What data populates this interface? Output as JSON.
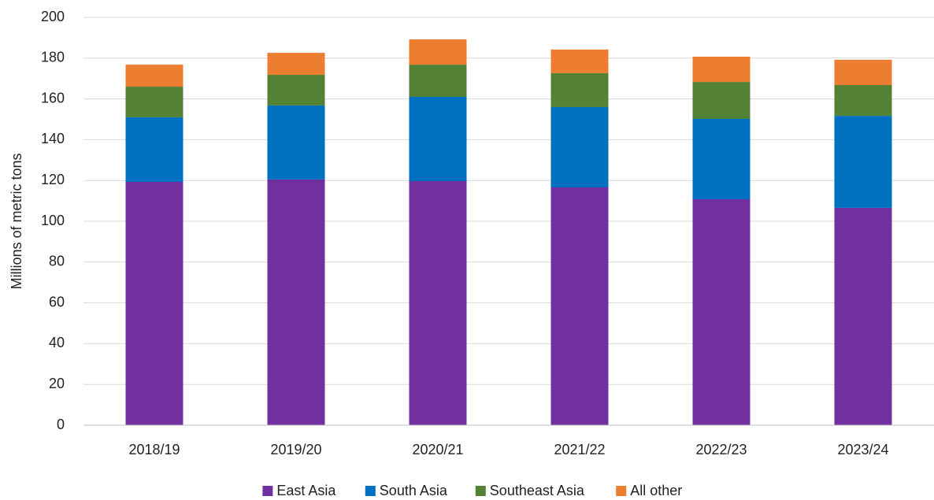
{
  "chart_data": {
    "type": "stacked_bar",
    "y_label": "Millions of metric tons",
    "categories": [
      "2018/19",
      "2019/20",
      "2020/21",
      "2021/22",
      "2022/23",
      "2023/24"
    ],
    "series": [
      {
        "name": "East Asia",
        "color": "#7030a0",
        "values": [
          119.3,
          120.5,
          119.7,
          116.6,
          110.8,
          106.6
        ]
      },
      {
        "name": "South Asia",
        "color": "#0070c0",
        "values": [
          31.7,
          36.3,
          41.3,
          39.4,
          39.4,
          45.1
        ]
      },
      {
        "name": "Southeast Asia",
        "color": "#548235",
        "values": [
          15.0,
          15.0,
          15.8,
          16.6,
          18.1,
          15.1
        ]
      },
      {
        "name": "All other",
        "color": "#ed7d31",
        "values": [
          10.8,
          10.8,
          12.4,
          11.6,
          12.4,
          12.4
        ]
      }
    ],
    "ylim": [
      0,
      200
    ],
    "yticks": [
      0,
      20,
      40,
      60,
      80,
      100,
      120,
      140,
      160,
      180,
      200
    ],
    "grid": true,
    "legend": "bottom"
  }
}
